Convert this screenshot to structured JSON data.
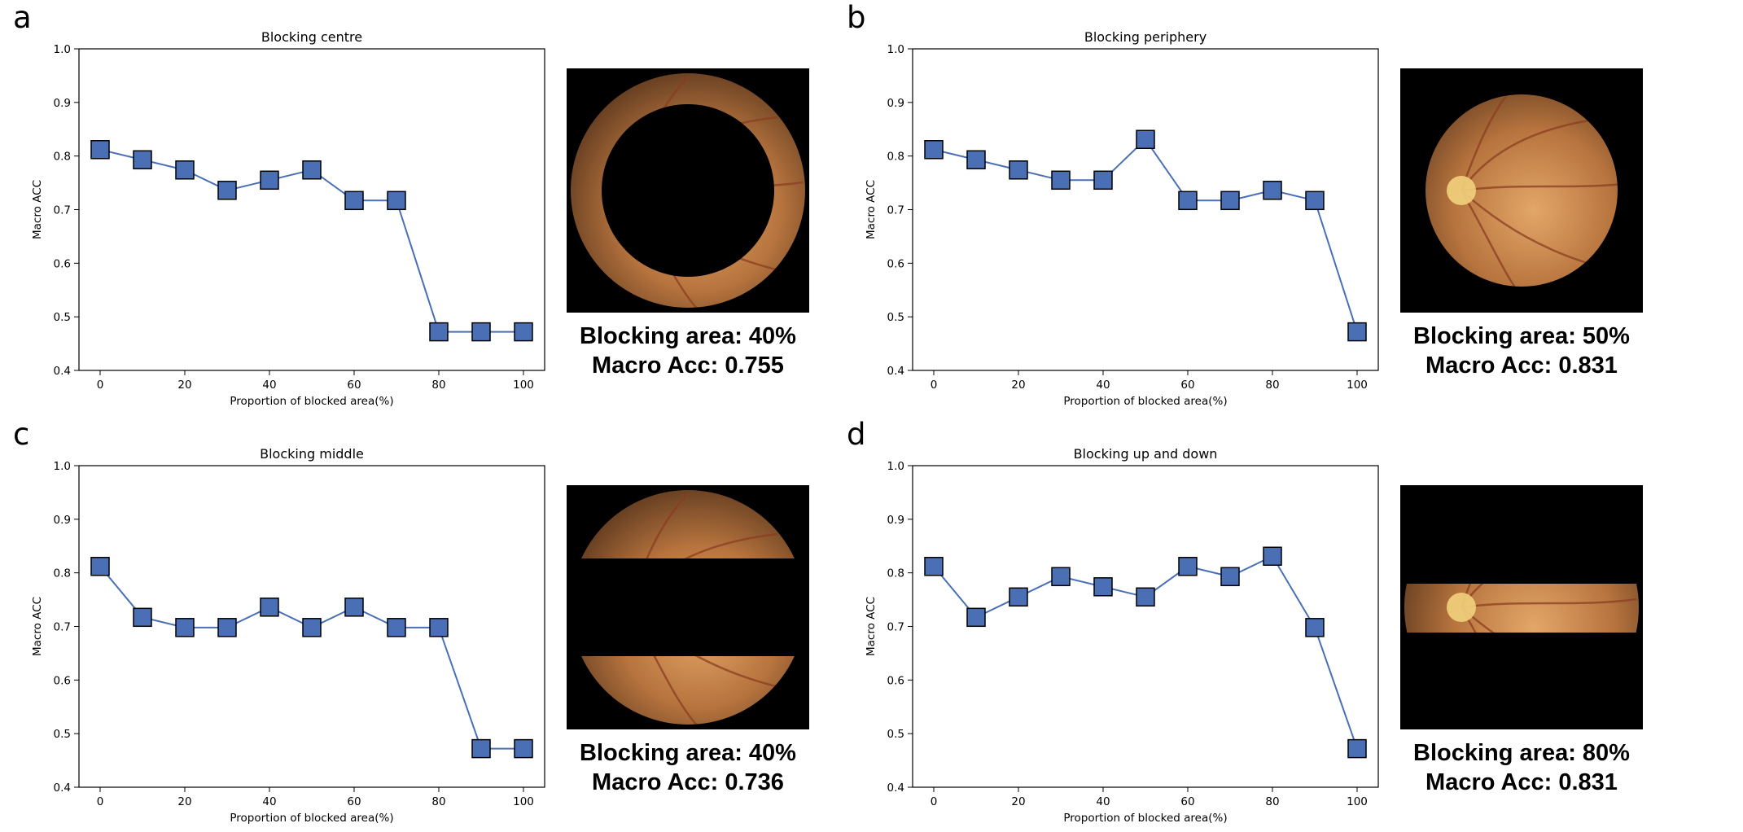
{
  "panels": [
    {
      "letter": "a",
      "caption_area": "Blocking area: 40%",
      "caption_acc": "Macro Acc: 0.755",
      "fundus_mask": "centre",
      "chart_data": {
        "type": "line",
        "title": "Blocking centre",
        "xlabel": "Proportion of blocked area(%)",
        "ylabel": "Macro ACC",
        "x": [
          0,
          10,
          20,
          30,
          40,
          50,
          60,
          70,
          80,
          90,
          100
        ],
        "y": [
          0.812,
          0.793,
          0.774,
          0.736,
          0.755,
          0.774,
          0.717,
          0.717,
          0.472,
          0.472,
          0.472
        ],
        "xlim": [
          -5,
          105
        ],
        "ylim": [
          0.4,
          1.0
        ],
        "xticks": [
          0,
          20,
          40,
          60,
          80,
          100
        ],
        "yticks": [
          0.4,
          0.5,
          0.6,
          0.7,
          0.8,
          0.9,
          1.0
        ],
        "marker": "square",
        "color": "#4a6fb5",
        "grid": false
      }
    },
    {
      "letter": "b",
      "caption_area": "Blocking area: 50%",
      "caption_acc": "Macro Acc: 0.831",
      "fundus_mask": "periphery",
      "chart_data": {
        "type": "line",
        "title": "Blocking periphery",
        "xlabel": "Proportion of blocked area(%)",
        "ylabel": "Macro ACC",
        "x": [
          0,
          10,
          20,
          30,
          40,
          50,
          60,
          70,
          80,
          90,
          100
        ],
        "y": [
          0.812,
          0.793,
          0.774,
          0.755,
          0.755,
          0.831,
          0.717,
          0.717,
          0.736,
          0.717,
          0.472
        ],
        "xlim": [
          -5,
          105
        ],
        "ylim": [
          0.4,
          1.0
        ],
        "xticks": [
          0,
          20,
          40,
          60,
          80,
          100
        ],
        "yticks": [
          0.4,
          0.5,
          0.6,
          0.7,
          0.8,
          0.9,
          1.0
        ],
        "marker": "square",
        "color": "#4a6fb5",
        "grid": false
      }
    },
    {
      "letter": "c",
      "caption_area": "Blocking area: 40%",
      "caption_acc": "Macro Acc: 0.736",
      "fundus_mask": "middle",
      "chart_data": {
        "type": "line",
        "title": "Blocking middle",
        "xlabel": "Proportion of blocked area(%)",
        "ylabel": "Macro ACC",
        "x": [
          0,
          10,
          20,
          30,
          40,
          50,
          60,
          70,
          80,
          90,
          100
        ],
        "y": [
          0.812,
          0.717,
          0.698,
          0.698,
          0.736,
          0.698,
          0.736,
          0.698,
          0.698,
          0.472,
          0.472
        ],
        "xlim": [
          -5,
          105
        ],
        "ylim": [
          0.4,
          1.0
        ],
        "xticks": [
          0,
          20,
          40,
          60,
          80,
          100
        ],
        "yticks": [
          0.4,
          0.5,
          0.6,
          0.7,
          0.8,
          0.9,
          1.0
        ],
        "marker": "square",
        "color": "#4a6fb5",
        "grid": false
      }
    },
    {
      "letter": "d",
      "caption_area": "Blocking area: 80%",
      "caption_acc": "Macro Acc: 0.831",
      "fundus_mask": "updown",
      "chart_data": {
        "type": "line",
        "title": "Blocking up and down",
        "xlabel": "Proportion of blocked area(%)",
        "ylabel": "Macro ACC",
        "x": [
          0,
          10,
          20,
          30,
          40,
          50,
          60,
          70,
          80,
          90,
          100
        ],
        "y": [
          0.812,
          0.717,
          0.755,
          0.793,
          0.774,
          0.755,
          0.812,
          0.793,
          0.831,
          0.698,
          0.472
        ],
        "xlim": [
          -5,
          105
        ],
        "ylim": [
          0.4,
          1.0
        ],
        "xticks": [
          0,
          20,
          40,
          60,
          80,
          100
        ],
        "yticks": [
          0.4,
          0.5,
          0.6,
          0.7,
          0.8,
          0.9,
          1.0
        ],
        "marker": "square",
        "color": "#4a6fb5",
        "grid": false
      }
    }
  ]
}
